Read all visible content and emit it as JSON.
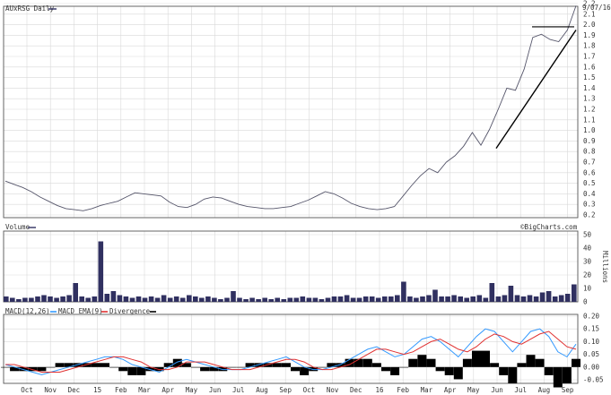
{
  "chart_data": {
    "type": "line",
    "price_panel": {
      "title": "AUxRSG Daily",
      "date_label": "9/07/16",
      "ylim": [
        0.2,
        2.2
      ],
      "y_ticks": [
        "0.2",
        "0.3",
        "0.4",
        "0.5",
        "0.6",
        "0.7",
        "0.8",
        "0.9",
        "1.0",
        "1.1",
        "1.2",
        "1.3",
        "1.4",
        "1.5",
        "1.6",
        "1.7",
        "1.8",
        "1.9",
        "2.0",
        "2.1",
        "2.2"
      ],
      "series": [
        {
          "values": [
            0.52,
            0.49,
            0.46,
            0.42,
            0.37,
            0.33,
            0.29,
            0.26,
            0.25,
            0.24,
            0.26,
            0.29,
            0.31,
            0.33,
            0.37,
            0.41,
            0.4,
            0.39,
            0.38,
            0.32,
            0.28,
            0.27,
            0.3,
            0.35,
            0.37,
            0.36,
            0.33,
            0.3,
            0.28,
            0.27,
            0.26,
            0.26,
            0.27,
            0.28,
            0.31,
            0.34,
            0.38,
            0.42,
            0.4,
            0.36,
            0.31,
            0.28,
            0.26,
            0.25,
            0.26,
            0.28,
            0.38,
            0.48,
            0.57,
            0.64,
            0.6,
            0.7,
            0.76,
            0.85,
            0.98,
            0.86,
            1.01,
            1.2,
            1.4,
            1.38,
            1.58,
            1.88,
            1.91,
            1.86,
            1.84,
            1.95,
            2.18
          ]
        }
      ],
      "annotations": {
        "resistance_level": 1.98,
        "trendline_start": 0.83,
        "trendline_end": 1.95
      }
    },
    "volume_panel": {
      "title": "Volume",
      "unit_label": "Millions",
      "ylim": [
        0,
        50
      ],
      "y_ticks": [
        "0",
        "10",
        "20",
        "30",
        "40",
        "50"
      ],
      "values": [
        4,
        3,
        2,
        3,
        3,
        4,
        5,
        4,
        3,
        4,
        5,
        14,
        4,
        3,
        4,
        45,
        6,
        8,
        5,
        4,
        3,
        4,
        3,
        4,
        3,
        5,
        3,
        4,
        3,
        5,
        4,
        3,
        4,
        3,
        2,
        3,
        8,
        3,
        2,
        3,
        2,
        3,
        2,
        3,
        2,
        3,
        3,
        4,
        3,
        3,
        2,
        3,
        4,
        4,
        5,
        3,
        3,
        4,
        4,
        3,
        4,
        4,
        5,
        15,
        4,
        3,
        4,
        5,
        9,
        4,
        4,
        5,
        4,
        3,
        4,
        5,
        3,
        14,
        4,
        5,
        12,
        5,
        4,
        5,
        4,
        7,
        8,
        4,
        5,
        6,
        13
      ]
    },
    "macd_panel": {
      "title": "MACD(12,26)",
      "legend": [
        {
          "name": "MACD EMA(9)",
          "color": "#3399ff"
        },
        {
          "name": "Divergence",
          "color": "#e03030"
        }
      ],
      "ylim": [
        -0.05,
        0.2
      ],
      "y_ticks": [
        "-0.05",
        "0.00",
        "0.05",
        "0.10",
        "0.15",
        "0.20"
      ],
      "macd": [
        0.01,
        0.0,
        -0.01,
        -0.02,
        -0.03,
        -0.02,
        -0.01,
        0.0,
        0.01,
        0.02,
        0.03,
        0.04,
        0.04,
        0.03,
        0.01,
        0.0,
        -0.01,
        -0.02,
        0.0,
        0.02,
        0.03,
        0.02,
        0.01,
        0.0,
        -0.01,
        -0.01,
        -0.01,
        0.0,
        0.01,
        0.02,
        0.03,
        0.04,
        0.02,
        0.0,
        -0.01,
        -0.01,
        0.0,
        0.01,
        0.03,
        0.05,
        0.07,
        0.08,
        0.06,
        0.04,
        0.05,
        0.08,
        0.11,
        0.12,
        0.1,
        0.07,
        0.04,
        0.08,
        0.12,
        0.15,
        0.14,
        0.1,
        0.06,
        0.1,
        0.14,
        0.15,
        0.12,
        0.06,
        0.04,
        0.09
      ],
      "signal": [
        0.01,
        0.01,
        0.0,
        -0.01,
        -0.02,
        -0.02,
        -0.02,
        -0.01,
        0.0,
        0.01,
        0.02,
        0.03,
        0.04,
        0.04,
        0.03,
        0.02,
        0.0,
        -0.01,
        -0.01,
        0.0,
        0.02,
        0.02,
        0.02,
        0.01,
        0.0,
        -0.01,
        -0.01,
        -0.01,
        0.0,
        0.01,
        0.02,
        0.03,
        0.03,
        0.02,
        0.0,
        -0.01,
        -0.01,
        0.0,
        0.01,
        0.03,
        0.05,
        0.07,
        0.07,
        0.06,
        0.05,
        0.06,
        0.08,
        0.1,
        0.11,
        0.09,
        0.07,
        0.06,
        0.08,
        0.11,
        0.13,
        0.12,
        0.1,
        0.09,
        0.11,
        0.13,
        0.14,
        0.11,
        0.08,
        0.07
      ],
      "x_ticks": [
        "Oct",
        "Nov",
        "Dec",
        "15",
        "Feb",
        "Mar",
        "Apr",
        "May",
        "Jun",
        "Jul",
        "Aug",
        "Sep",
        "Oct",
        "Nov",
        "Dec",
        "16",
        "Feb",
        "Mar",
        "Apr",
        "May",
        "Jun",
        "Jul",
        "Aug",
        "Sep"
      ]
    },
    "source": "©BigCharts.com"
  },
  "colors": {
    "price_line": "#55556a",
    "volume_bar": "#303060",
    "macd_line": "#3399ff",
    "signal_line": "#e03030",
    "divergence": "#000000",
    "trendline": "#000000"
  }
}
